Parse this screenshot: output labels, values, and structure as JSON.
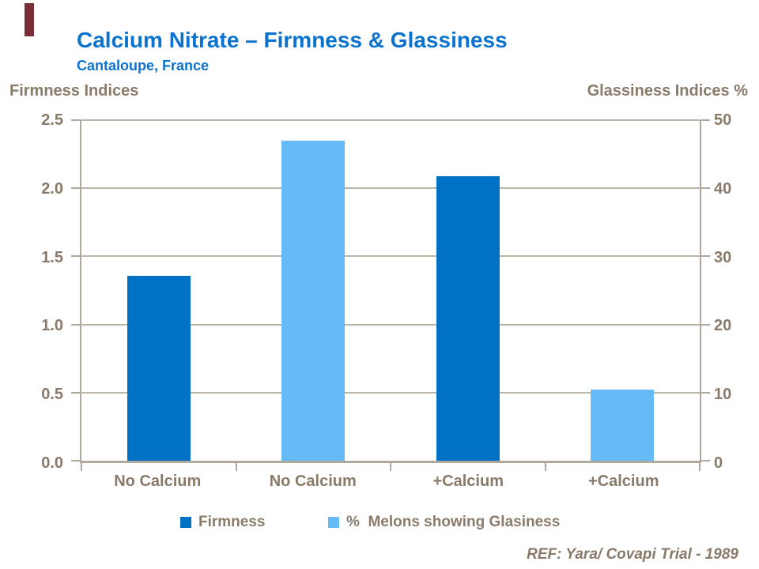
{
  "header": {
    "title": "Calcium Nitrate – Firmness & Glassiness",
    "subtitle": "Cantaloupe, France"
  },
  "footer": {
    "ref": "REF: Yara/ Covapi Trial - 1989"
  },
  "colors": {
    "title_blue": "#0b73ce",
    "firmness_bar": "#0072c6",
    "glassiness_bar": "#66bbf7",
    "axis_text": "#8a7a69",
    "axis_line": "#b2a99e",
    "gridline": "#bdb5aa",
    "accent_maroon": "#7a2e37",
    "background": "#ffffff"
  },
  "chart_data": {
    "type": "bar",
    "title": "Calcium Nitrate – Firmness & Glassiness",
    "subtitle": "Cantaloupe, France",
    "categories": [
      "No Calcium",
      "No Calcium",
      "+Calcium",
      "+Calcium"
    ],
    "left_axis": {
      "label": "Firmness Indices",
      "min": 0.0,
      "max": 2.5,
      "ticks": [
        "2.5",
        "2.0",
        "1.5",
        "1.0",
        "0.5",
        "0.0"
      ]
    },
    "right_axis": {
      "label": "Glassiness Indices %",
      "min": 0,
      "max": 50,
      "ticks": [
        "50",
        "40",
        "30",
        "20",
        "10",
        "0"
      ]
    },
    "grid": true,
    "legend_position": "bottom",
    "bars": [
      {
        "category": "No Calcium",
        "series": "Firmness",
        "axis": "left",
        "value": 1.36,
        "color_key": "firmness_bar"
      },
      {
        "category": "No Calcium",
        "series": "% Melons showing Glasiness",
        "axis": "right",
        "value": 47,
        "color_key": "glassiness_bar"
      },
      {
        "category": "+Calcium",
        "series": "Firmness",
        "axis": "left",
        "value": 2.09,
        "color_key": "firmness_bar"
      },
      {
        "category": "+Calcium",
        "series": "% Melons showing Glasiness",
        "axis": "right",
        "value": 10.5,
        "color_key": "glassiness_bar"
      }
    ],
    "legend": [
      {
        "label": "Firmness",
        "color_key": "firmness_bar"
      },
      {
        "label": "%  Melons showing Glasiness",
        "color_key": "glassiness_bar"
      }
    ]
  }
}
